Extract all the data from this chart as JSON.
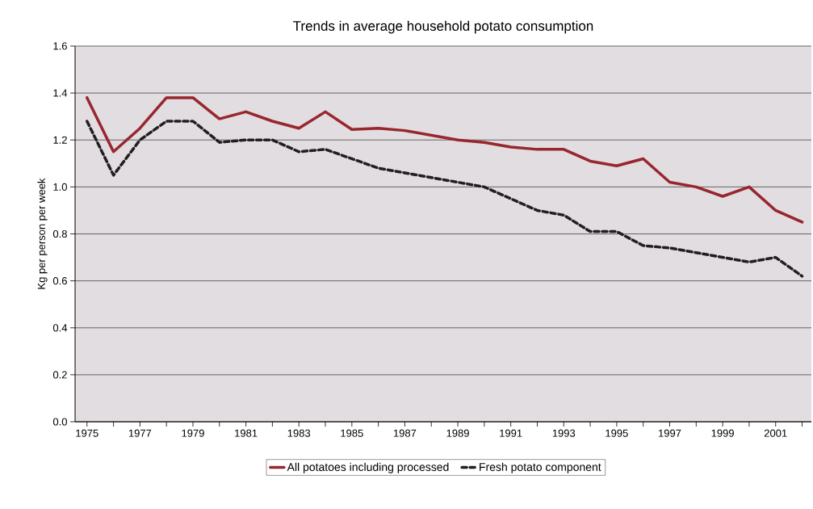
{
  "chart_data": {
    "type": "line",
    "title": "Trends in average household potato consumption",
    "ylabel": "Kg per person per week",
    "x": [
      1975,
      1976,
      1977,
      1978,
      1979,
      1980,
      1981,
      1982,
      1983,
      1984,
      1985,
      1986,
      1987,
      1988,
      1989,
      1990,
      1991,
      1992,
      1993,
      1994,
      1995,
      1996,
      1997,
      1998,
      1999,
      2000,
      2001,
      2002
    ],
    "series": [
      {
        "name": "All potatoes including processed",
        "color": "#98262f",
        "line_style": "solid",
        "values": [
          1.38,
          1.15,
          1.25,
          1.38,
          1.38,
          1.29,
          1.32,
          1.28,
          1.25,
          1.32,
          1.245,
          1.25,
          1.24,
          1.22,
          1.2,
          1.19,
          1.17,
          1.16,
          1.16,
          1.11,
          1.09,
          1.12,
          1.02,
          1.0,
          0.96,
          1.0,
          0.9,
          0.85
        ]
      },
      {
        "name": "Fresh potato component",
        "color": "#231f20",
        "line_style": "dashed",
        "values": [
          1.28,
          1.05,
          1.2,
          1.28,
          1.28,
          1.19,
          1.2,
          1.2,
          1.15,
          1.16,
          1.12,
          1.08,
          1.06,
          1.04,
          1.02,
          1.0,
          0.95,
          0.9,
          0.88,
          0.81,
          0.81,
          0.75,
          0.74,
          0.72,
          0.7,
          0.68,
          0.7,
          0.62
        ]
      }
    ],
    "xlim": [
      1974.55,
      2002.35
    ],
    "xticks": [
      1975,
      {
        "value": 1976,
        "label": null
      },
      1977,
      {
        "value": 1978,
        "label": null
      },
      1979,
      {
        "value": 1980,
        "label": null
      },
      1981,
      {
        "value": 1982,
        "label": null
      },
      1983,
      {
        "value": 1984,
        "label": null
      },
      1985,
      {
        "value": 1986,
        "label": null
      },
      1987,
      {
        "value": 1988,
        "label": null
      },
      1989,
      {
        "value": 1990,
        "label": null
      },
      1991,
      {
        "value": 1992,
        "label": null
      },
      1993,
      {
        "value": 1994,
        "label": null
      },
      1995,
      {
        "value": 1996,
        "label": null
      },
      1997,
      {
        "value": 1998,
        "label": null
      },
      1999,
      {
        "value": 2000,
        "label": null
      },
      2001,
      {
        "value": 2002,
        "label": null
      }
    ],
    "ylim": [
      0,
      1.6
    ],
    "yticks": [
      {
        "value": 0,
        "label": "0.0"
      },
      0.2,
      0.4,
      0.6,
      0.8,
      {
        "value": 1,
        "label": "1.0"
      },
      1.2,
      1.4,
      1.6
    ],
    "grid": "y",
    "legend": "bottom",
    "marker": "none"
  }
}
